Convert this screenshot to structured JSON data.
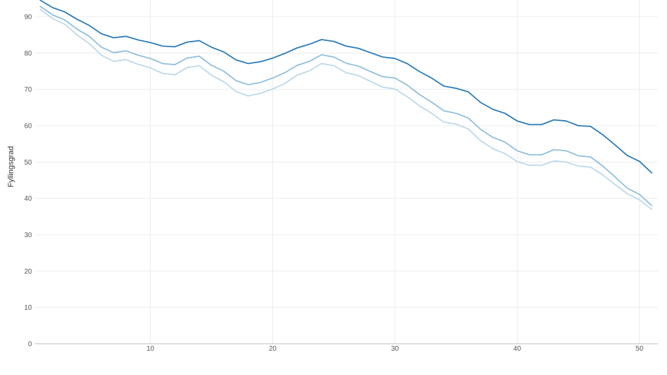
{
  "chart_data": {
    "type": "line",
    "title": "",
    "xlabel": "",
    "ylabel": "Fyllingsgrad",
    "xlim": [
      1,
      51
    ],
    "ylim": [
      0,
      95
    ],
    "x_ticks": [
      10,
      20,
      30,
      40,
      50
    ],
    "y_ticks": [
      0,
      10,
      20,
      30,
      40,
      50,
      60,
      70,
      80,
      90
    ],
    "grid": true,
    "legend": "none",
    "x": [
      1,
      2,
      3,
      4,
      5,
      6,
      7,
      8,
      9,
      10,
      11,
      12,
      13,
      14,
      15,
      16,
      17,
      18,
      19,
      20,
      21,
      22,
      23,
      24,
      25,
      26,
      27,
      28,
      29,
      30,
      31,
      32,
      33,
      34,
      35,
      36,
      37,
      38,
      39,
      40,
      41,
      42,
      43,
      44,
      45,
      46,
      47,
      48,
      49,
      50,
      51
    ],
    "series": [
      {
        "color": "#2b7bb9",
        "values": [
          94.5,
          92.5,
          91.3,
          89.3,
          87.6,
          85.3,
          84.2,
          84.6,
          83.6,
          82.9,
          81.9,
          81.7,
          83.0,
          83.4,
          81.6,
          80.3,
          78.1,
          77.1,
          77.6,
          78.6,
          79.9,
          81.4,
          82.4,
          83.7,
          83.2,
          81.9,
          81.3,
          80.1,
          78.9,
          78.5,
          77.1,
          74.9,
          73.1,
          70.9,
          70.3,
          69.3,
          66.4,
          64.5,
          63.4,
          61.3,
          60.3,
          60.3,
          61.6,
          61.3,
          60.0,
          59.8,
          57.5,
          54.7,
          51.8,
          50.2,
          47.0
        ]
      },
      {
        "color": "#8fbfdc",
        "values": [
          92.8,
          90.5,
          89.1,
          86.6,
          84.6,
          81.6,
          80.1,
          80.6,
          79.4,
          78.5,
          77.1,
          76.8,
          78.6,
          79.1,
          76.6,
          75.0,
          72.4,
          71.3,
          71.9,
          73.1,
          74.6,
          76.6,
          77.7,
          79.5,
          78.9,
          77.2,
          76.4,
          74.9,
          73.5,
          73.1,
          71.2,
          68.6,
          66.5,
          64.1,
          63.4,
          62.1,
          59.0,
          56.8,
          55.5,
          53.1,
          52.0,
          52.0,
          53.4,
          53.1,
          51.7,
          51.4,
          48.9,
          45.9,
          42.8,
          41.1,
          38.0
        ]
      },
      {
        "color": "#bcd9ea",
        "values": [
          92.0,
          89.5,
          87.9,
          85.0,
          82.6,
          79.4,
          77.7,
          78.2,
          76.9,
          75.9,
          74.4,
          74.0,
          76.0,
          76.5,
          73.9,
          72.1,
          69.4,
          68.2,
          68.9,
          70.1,
          71.6,
          73.9,
          75.1,
          77.1,
          76.5,
          74.6,
          73.8,
          72.2,
          70.6,
          70.1,
          68.0,
          65.5,
          63.4,
          61.0,
          60.4,
          59.1,
          55.9,
          53.7,
          52.3,
          50.1,
          49.1,
          49.1,
          50.3,
          50.0,
          48.9,
          48.6,
          46.5,
          43.8,
          41.3,
          39.6,
          37.0
        ]
      }
    ]
  }
}
